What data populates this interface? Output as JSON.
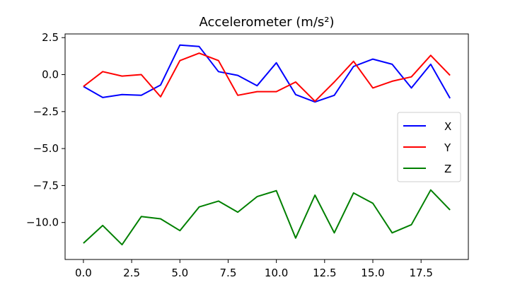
{
  "chart_data": {
    "type": "line",
    "title": "Accelerometer (m/s²)",
    "xlabel": "",
    "ylabel": "",
    "x": [
      0,
      1,
      2,
      3,
      4,
      5,
      6,
      7,
      8,
      9,
      10,
      11,
      12,
      13,
      14,
      15,
      16,
      17,
      18,
      19
    ],
    "xlim": [
      -0.95,
      19.95
    ],
    "ylim": [
      -12.5,
      2.75
    ],
    "xticks": [
      0.0,
      2.5,
      5.0,
      7.5,
      10.0,
      12.5,
      15.0,
      17.5
    ],
    "xtick_labels": [
      "0.0",
      "2.5",
      "5.0",
      "7.5",
      "10.0",
      "12.5",
      "15.0",
      "17.5"
    ],
    "yticks": [
      2.5,
      0.0,
      -2.5,
      -5.0,
      -7.5,
      -10.0
    ],
    "ytick_labels": [
      "2.5",
      "0.0",
      "−2.5",
      "−5.0",
      "−7.5",
      "−10.0"
    ],
    "grid": false,
    "legend_position": "center-right",
    "series": [
      {
        "name": "X",
        "color": "#0000ff",
        "values": [
          -0.8,
          -1.55,
          -1.35,
          -1.4,
          -0.7,
          2.0,
          1.9,
          0.2,
          -0.05,
          -0.75,
          0.8,
          -1.35,
          -1.85,
          -1.4,
          0.55,
          1.05,
          0.7,
          -0.9,
          0.7,
          -1.6
        ]
      },
      {
        "name": "Y",
        "color": "#ff0000",
        "values": [
          -0.8,
          0.2,
          -0.1,
          0.0,
          -1.5,
          0.95,
          1.45,
          0.95,
          -1.4,
          -1.15,
          -1.15,
          -0.5,
          -1.8,
          -0.5,
          0.9,
          -0.9,
          -0.45,
          -0.15,
          1.3,
          -0.05
        ]
      },
      {
        "name": "Z",
        "color": "#008000",
        "values": [
          -11.4,
          -10.2,
          -11.5,
          -9.6,
          -9.75,
          -10.55,
          -8.95,
          -8.55,
          -9.3,
          -8.25,
          -7.85,
          -11.05,
          -8.15,
          -10.7,
          -8.0,
          -8.7,
          -10.7,
          -10.15,
          -7.8,
          -9.15
        ]
      }
    ]
  }
}
